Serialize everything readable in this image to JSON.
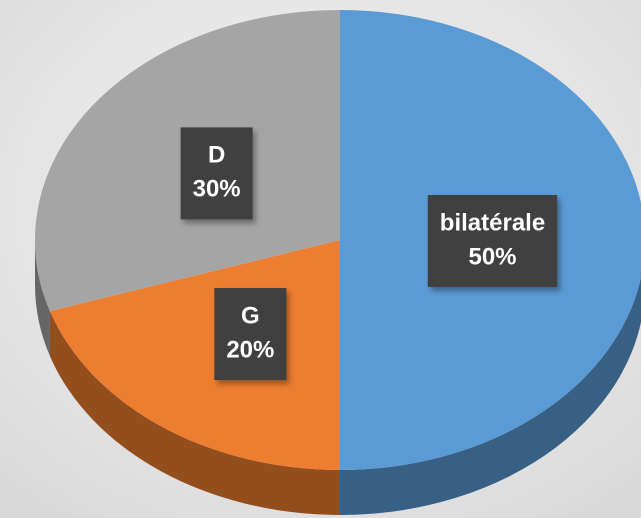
{
  "chart_data": {
    "type": "pie",
    "categories": [
      "bilatérale",
      "G",
      "D"
    ],
    "values": [
      50,
      20,
      30
    ],
    "value_labels": [
      "50%",
      "20%",
      "30%"
    ],
    "colors": [
      "#5b9bd5",
      "#ed7d31",
      "#a5a5a5"
    ]
  }
}
